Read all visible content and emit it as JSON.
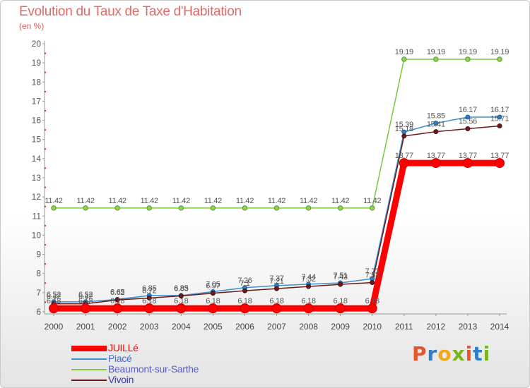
{
  "title": "Evolution du Taux de Taxe d'Habitation",
  "unit_label": "(en %)",
  "brand": {
    "name": "Proxiti",
    "letter_colors": [
      "#e8552d",
      "#2f7fc7",
      "#f0a81a",
      "#7ab51d",
      "#e8552d",
      "#2f7fc7",
      "#7ab51d"
    ]
  },
  "chart_data": {
    "type": "line",
    "title": "Evolution du Taux de Taxe d'Habitation",
    "ylabel": "(en %)",
    "x": [
      2000,
      2001,
      2002,
      2003,
      2004,
      2005,
      2006,
      2007,
      2008,
      2009,
      2010,
      2011,
      2012,
      2013,
      2014
    ],
    "ylim": [
      6,
      20
    ],
    "yticks": [
      6,
      7,
      8,
      9,
      10,
      11,
      12,
      13,
      14,
      15,
      16,
      17,
      18,
      19,
      20
    ],
    "grid": false,
    "legend_position": "bottom-left",
    "series": [
      {
        "name": "JUILLé",
        "color": "#ff0000",
        "values": [
          6.18,
          6.18,
          6.18,
          6.18,
          6.18,
          6.18,
          6.18,
          6.18,
          6.18,
          6.18,
          6.18,
          13.77,
          13.77,
          13.77,
          13.77
        ],
        "labels": [
          "6.18",
          "6.18",
          "6.18",
          "6.18",
          "6.18",
          "6.18",
          "6.18",
          "6.18",
          "6.18",
          "6.18",
          "6.18",
          "13.77",
          "13.77",
          "13.77",
          "13.77"
        ]
      },
      {
        "name": "Piacé",
        "color": "#3f8fd2",
        "values": [
          6.52,
          6.52,
          6.65,
          6.85,
          6.85,
          7.05,
          7.26,
          7.37,
          7.44,
          7.51,
          7.73,
          15.39,
          15.85,
          16.17,
          16.17
        ],
        "labels": [
          "6.52",
          "6.52",
          "6.65",
          "6.85",
          "6.85",
          "7.05",
          "7.26",
          "7.37",
          "7.44",
          "7.51",
          "7.73",
          "15.39",
          "15.85",
          "16.17",
          "16.17"
        ]
      },
      {
        "name": "Beaumont-sur-Sarthe",
        "color": "#7ac943",
        "values": [
          11.42,
          11.42,
          11.42,
          11.42,
          11.42,
          11.42,
          11.42,
          11.42,
          11.42,
          11.42,
          11.42,
          19.19,
          19.19,
          19.19,
          19.19
        ],
        "labels": [
          "11.42",
          "11.42",
          "11.42",
          "11.42",
          "11.42",
          "11.42",
          "11.42",
          "11.42",
          "11.42",
          "11.42",
          "11.42",
          "19.19",
          "19.19",
          "19.19",
          "19.19"
        ]
      },
      {
        "name": "Vivoin",
        "color": "#6b1a1a",
        "values": [
          6.42,
          6.42,
          6.62,
          6.72,
          6.83,
          6.97,
          7.1,
          7.21,
          7.32,
          7.43,
          7.53,
          15.18,
          15.41,
          15.56,
          15.71
        ],
        "labels": [
          "6.42",
          "6.42",
          "6.62",
          "6.72",
          "6.83",
          "6.97",
          "7.1",
          "7.21",
          "7.32",
          "7.43",
          "7.53",
          "15.18",
          "15.41",
          "15.56",
          "15.71"
        ]
      }
    ]
  }
}
